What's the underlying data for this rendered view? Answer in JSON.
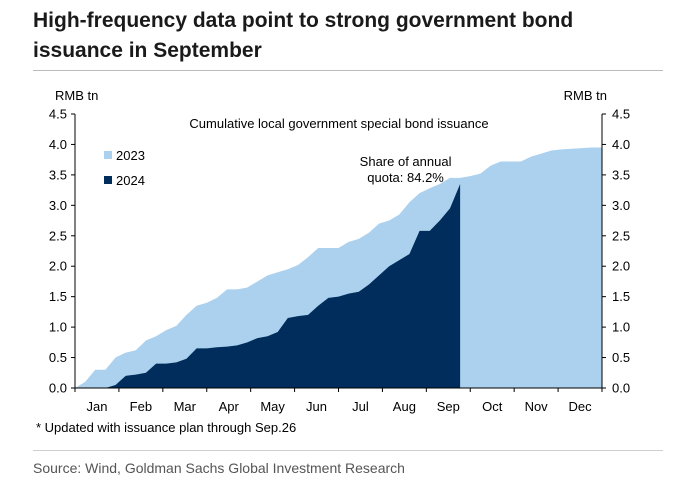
{
  "header": {
    "title": "High-frequency data point to strong government bond issuance in September"
  },
  "footnote": "* Updated with issuance plan through Sep.26",
  "source": "Source: Wind, Goldman Sachs Global Investment Research",
  "colors": {
    "s2023": "#abd1ef",
    "s2024": "#002d5b",
    "annotation": "#e0141c",
    "axis": "#000000"
  },
  "chart_data": {
    "type": "area",
    "title": "Cumulative local government special bond issuance",
    "y_unit_left": "RMB tn",
    "y_unit_right": "RMB tn",
    "ylim": [
      0,
      4.5
    ],
    "y_ticks": [
      0.0,
      0.5,
      1.0,
      1.5,
      2.0,
      2.5,
      3.0,
      3.5,
      4.0,
      4.5
    ],
    "y_tick_labels": [
      "0.0",
      "0.5",
      "1.0",
      "1.5",
      "2.0",
      "2.5",
      "3.0",
      "3.5",
      "4.0",
      "4.5"
    ],
    "x_unit": "week of year",
    "xlim": [
      0,
      52
    ],
    "months": [
      "Jan",
      "Feb",
      "Mar",
      "Apr",
      "May",
      "Jun",
      "Jul",
      "Aug",
      "Sep",
      "Oct",
      "Nov",
      "Dec"
    ],
    "legend": [
      "2023",
      "2024"
    ],
    "annotation": {
      "lines": [
        "Share of annual",
        "quota: 84.2%"
      ],
      "x": 34,
      "y": 3.65
    },
    "series": [
      {
        "name": "2023",
        "x": [
          0,
          1,
          2,
          3,
          4,
          5,
          6,
          7,
          8,
          9,
          10,
          11,
          12,
          13,
          14,
          15,
          16,
          17,
          18,
          19,
          20,
          21,
          22,
          23,
          24,
          25,
          26,
          27,
          28,
          29,
          30,
          31,
          32,
          33,
          34,
          35,
          36,
          37,
          38,
          39,
          40,
          41,
          42,
          43,
          44,
          45,
          46,
          47,
          48,
          49,
          50,
          51,
          52
        ],
        "values": [
          0.0,
          0.1,
          0.3,
          0.3,
          0.5,
          0.58,
          0.62,
          0.78,
          0.85,
          0.95,
          1.02,
          1.2,
          1.35,
          1.4,
          1.48,
          1.62,
          1.62,
          1.65,
          1.75,
          1.85,
          1.9,
          1.95,
          2.02,
          2.15,
          2.3,
          2.3,
          2.3,
          2.4,
          2.45,
          2.55,
          2.7,
          2.75,
          2.85,
          3.05,
          3.2,
          3.28,
          3.35,
          3.45,
          3.45,
          3.48,
          3.52,
          3.65,
          3.72,
          3.72,
          3.72,
          3.8,
          3.85,
          3.9,
          3.92,
          3.93,
          3.94,
          3.95,
          3.95
        ]
      },
      {
        "name": "2024",
        "x": [
          0,
          1,
          2,
          3,
          4,
          5,
          6,
          7,
          8,
          9,
          10,
          11,
          12,
          13,
          14,
          15,
          16,
          17,
          18,
          19,
          20,
          21,
          22,
          23,
          24,
          25,
          26,
          27,
          28,
          29,
          30,
          31,
          32,
          33,
          34,
          35,
          36,
          37,
          38
        ],
        "values": [
          0.0,
          0.0,
          0.0,
          0.0,
          0.05,
          0.2,
          0.22,
          0.25,
          0.4,
          0.4,
          0.42,
          0.48,
          0.65,
          0.65,
          0.67,
          0.68,
          0.7,
          0.75,
          0.82,
          0.85,
          0.92,
          1.15,
          1.18,
          1.2,
          1.35,
          1.48,
          1.5,
          1.55,
          1.58,
          1.7,
          1.85,
          2.0,
          2.1,
          2.2,
          2.58,
          2.58,
          2.75,
          2.95,
          3.35
        ]
      }
    ]
  }
}
